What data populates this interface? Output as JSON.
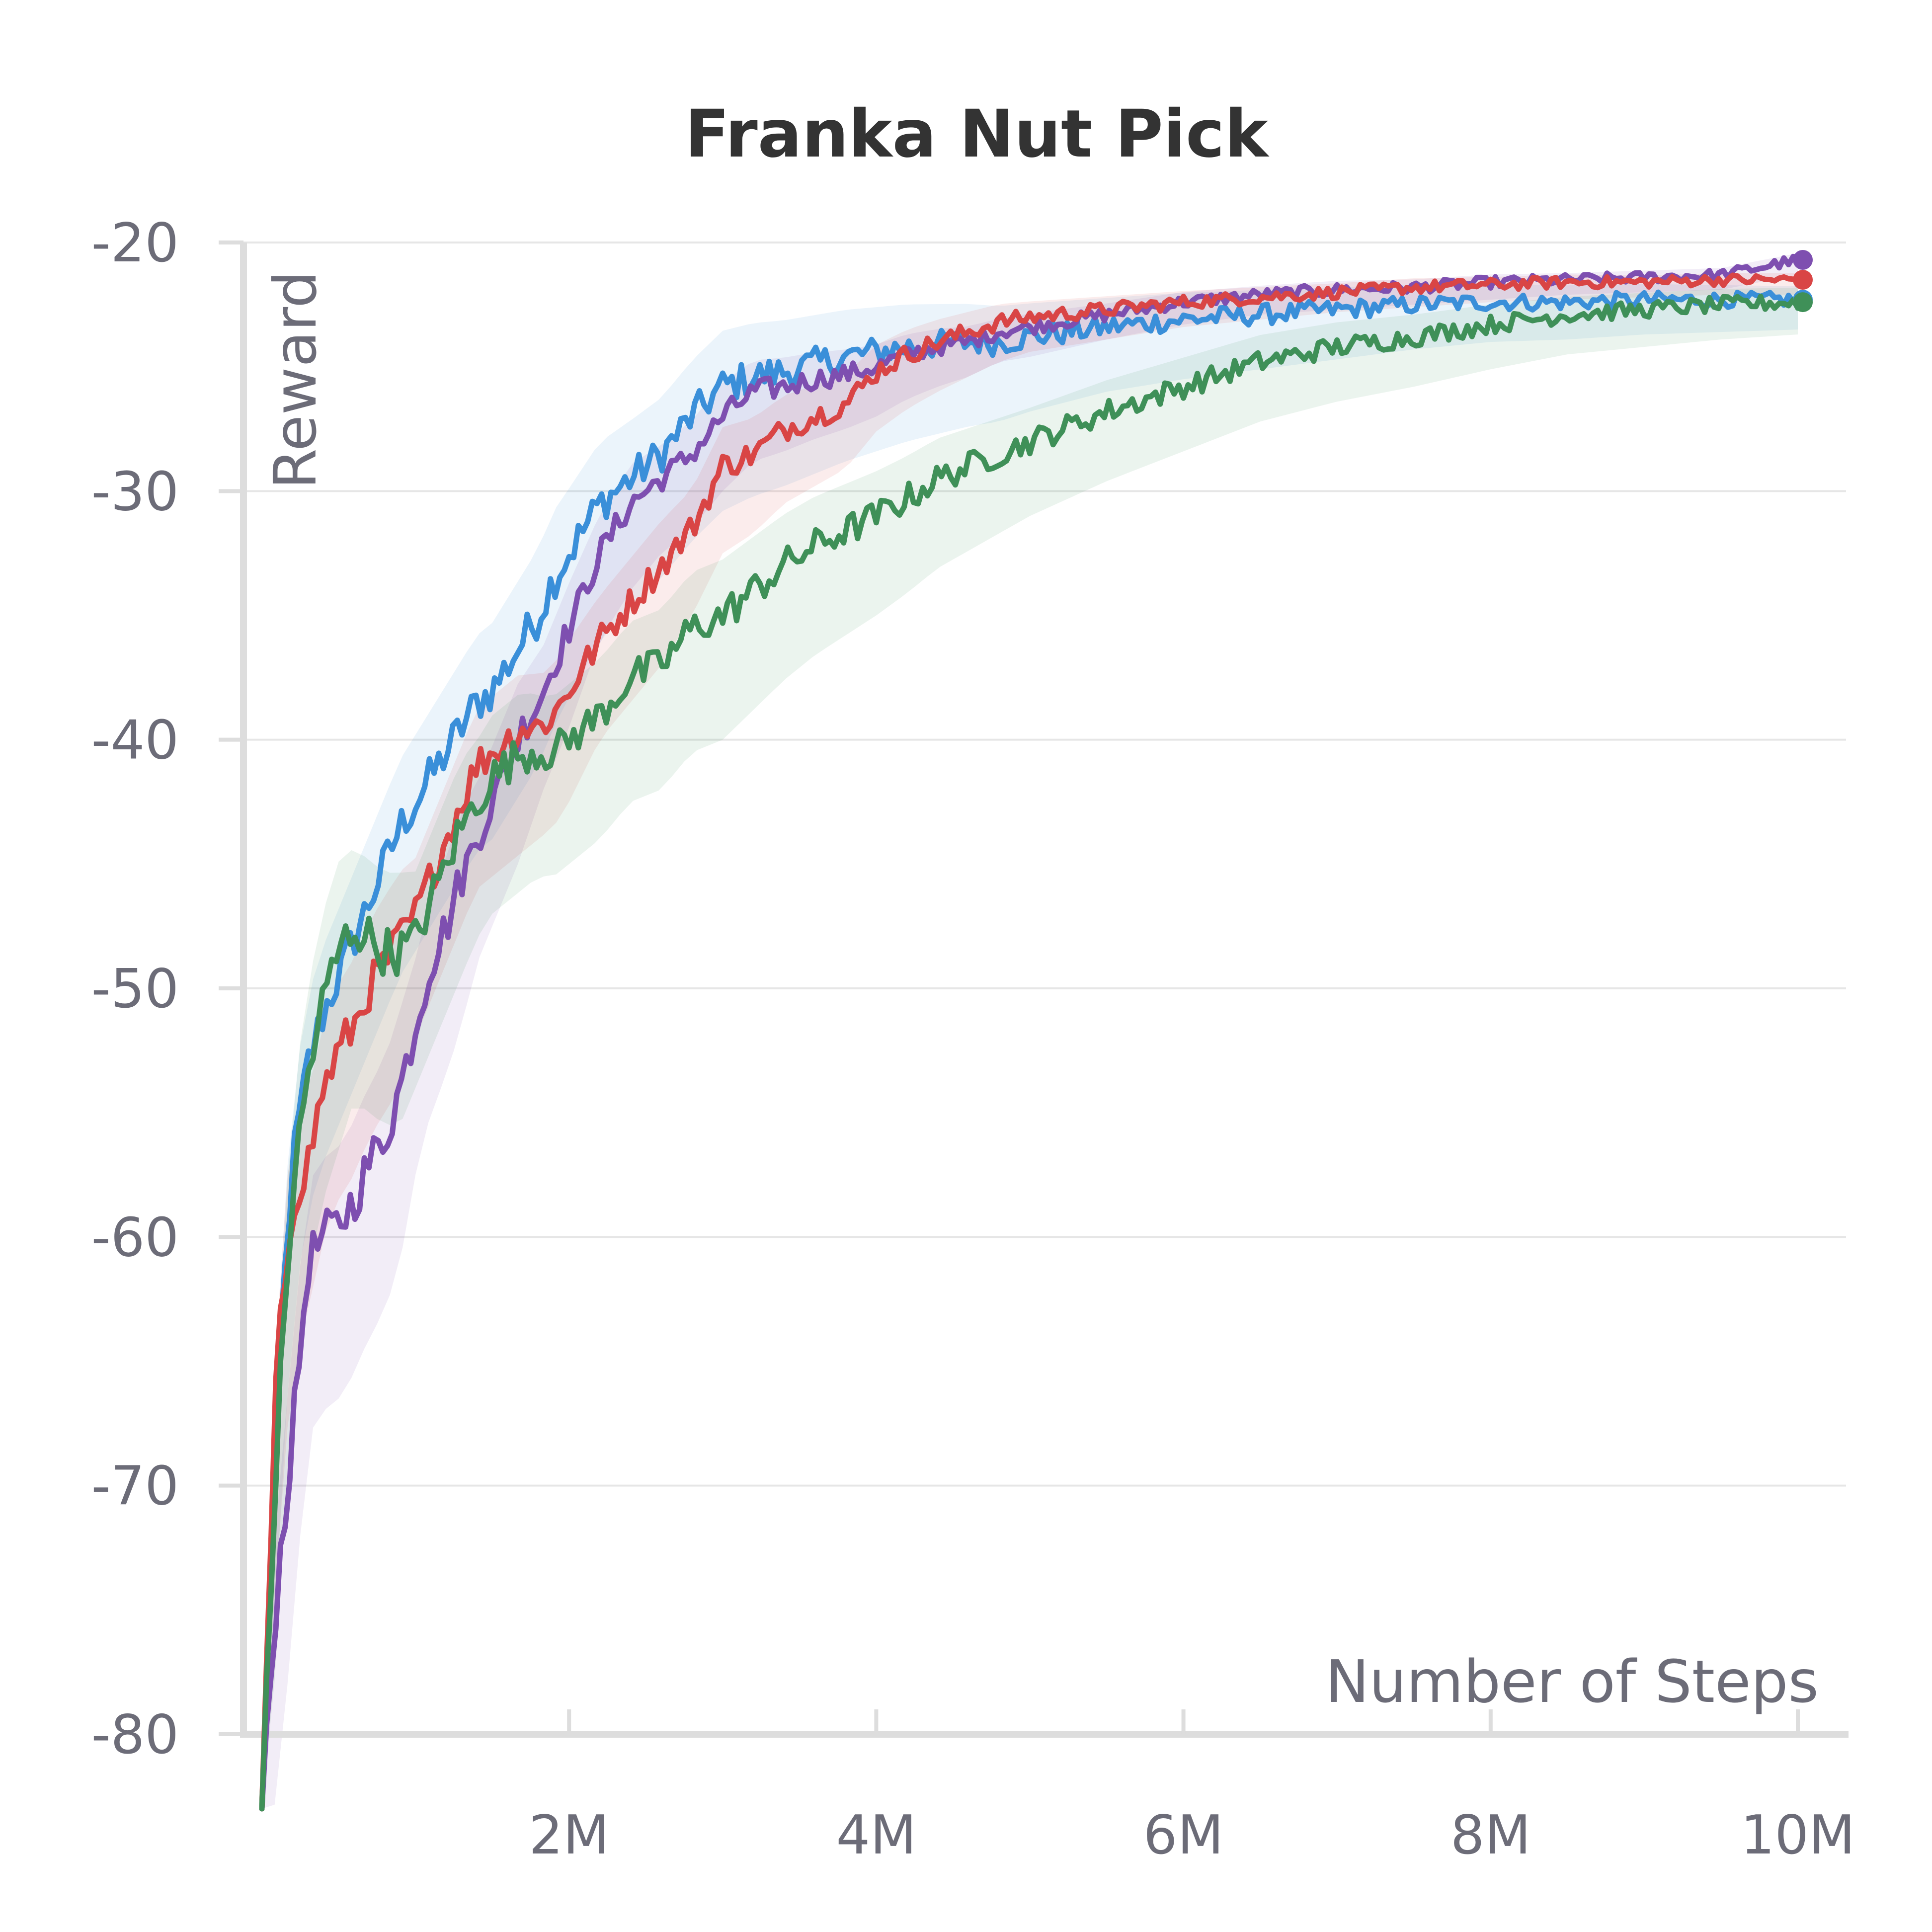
{
  "chart_data": {
    "type": "line",
    "title": "Franka Nut Pick",
    "xlabel": "Number of Steps",
    "ylabel": "Reward",
    "xlim": [
      0,
      10000000
    ],
    "ylim": [
      -80,
      -20
    ],
    "grid": true,
    "legend": "none",
    "x_ticks": [
      {
        "value": 2000000,
        "label": "2M"
      },
      {
        "value": 4000000,
        "label": "4M"
      },
      {
        "value": 6000000,
        "label": "6M"
      },
      {
        "value": 8000000,
        "label": "8M"
      },
      {
        "value": 10000000,
        "label": "10M"
      }
    ],
    "y_ticks": [
      {
        "value": -20,
        "label": "-20"
      },
      {
        "value": -30,
        "label": "-30"
      },
      {
        "value": -40,
        "label": "-40"
      },
      {
        "value": -50,
        "label": "-50"
      },
      {
        "value": -60,
        "label": "-60"
      },
      {
        "value": -70,
        "label": "-70"
      },
      {
        "value": -80,
        "label": "-80"
      }
    ],
    "x": [
      0,
      100000,
      200000,
      300000,
      400000,
      500000,
      600000,
      700000,
      800000,
      900000,
      1000000,
      1100000,
      1200000,
      1300000,
      1400000,
      1500000,
      1600000,
      1700000,
      1800000,
      1900000,
      2000000,
      2200000,
      2400000,
      2600000,
      2800000,
      3000000,
      3200000,
      3400000,
      3600000,
      3800000,
      4000000,
      4200000,
      4400000,
      4600000,
      4800000,
      5000000,
      5500000,
      6000000,
      6500000,
      7000000,
      7500000,
      8000000,
      8500000,
      9000000,
      9500000,
      10000000
    ],
    "series": [
      {
        "color": "#3a8fd9",
        "values": [
          -83,
          -66,
          -57,
          -53,
          -51,
          -49.5,
          -48,
          -46.5,
          -45,
          -43.5,
          -42.5,
          -41.5,
          -40.5,
          -39.5,
          -38.5,
          -38,
          -37,
          -36,
          -35,
          -33.5,
          -32.5,
          -30.5,
          -29.5,
          -28.5,
          -27,
          -25.8,
          -25.4,
          -25.2,
          -24.9,
          -24.6,
          -24.4,
          -24.2,
          -24.1,
          -24,
          -24,
          -23.8,
          -23.4,
          -23.1,
          -22.9,
          -22.7,
          -22.5,
          -22.4,
          -22.4,
          -22.3,
          -22.3,
          -22.3
        ],
        "band": [
          4,
          7,
          6,
          6,
          6,
          6,
          6,
          6,
          6,
          6,
          6,
          6,
          6,
          6,
          6,
          6,
          6,
          6,
          6,
          6,
          5.8,
          5.5,
          5.2,
          5,
          5,
          5,
          4.8,
          4.6,
          4.4,
          4.2,
          4,
          3.8,
          3.6,
          3.4,
          3.2,
          3,
          2.6,
          2.4,
          2.2,
          2,
          1.8,
          1.6,
          1.5,
          1.4,
          1.3,
          1.2
        ]
      },
      {
        "color": "#7e4fb0",
        "values": [
          -83,
          -74,
          -68,
          -61,
          -60,
          -59.5,
          -58.5,
          -57,
          -56,
          -54,
          -51.5,
          -49,
          -47.5,
          -45.5,
          -44,
          -42.5,
          -41,
          -39.5,
          -38.5,
          -37,
          -35.5,
          -32.5,
          -30.5,
          -29.5,
          -28.5,
          -27,
          -26,
          -25.8,
          -25.5,
          -25.3,
          -25,
          -24.5,
          -24.2,
          -24,
          -23.6,
          -23.4,
          -22.9,
          -22.4,
          -22.1,
          -21.9,
          -21.8,
          -21.6,
          -21.5,
          -21.4,
          -21.3,
          -20.7
        ],
        "band": [
          4,
          8,
          8,
          7,
          7,
          7,
          7,
          7,
          7,
          7,
          6,
          6,
          6,
          6,
          5,
          5,
          5,
          5,
          4,
          4,
          4,
          3.5,
          3.5,
          3,
          3,
          3,
          2.8,
          2.6,
          2.4,
          2.2,
          2,
          1.8,
          1.6,
          1.4,
          1.2,
          1.2,
          1,
          0.9,
          0.8,
          0.8,
          0.7,
          0.7,
          0.6,
          0.6,
          0.6,
          0.6
        ]
      },
      {
        "color": "#d94545",
        "values": [
          -83,
          -65,
          -58.5,
          -57,
          -54,
          -52.5,
          -51.5,
          -50,
          -49,
          -48,
          -47,
          -45.5,
          -44,
          -42.5,
          -41,
          -40.5,
          -40,
          -39.5,
          -39.5,
          -39,
          -38,
          -36,
          -34.5,
          -33,
          -31.5,
          -29,
          -28.5,
          -27.5,
          -27,
          -26.5,
          -25.2,
          -24.5,
          -24,
          -23.6,
          -23.2,
          -23,
          -22.7,
          -22.4,
          -22.2,
          -22,
          -21.8,
          -21.7,
          -21.6,
          -21.6,
          -21.5,
          -21.5
        ],
        "band": [
          4,
          7,
          7,
          6,
          6,
          6,
          6,
          6,
          6,
          6,
          5,
          5,
          5,
          5,
          5,
          5,
          5,
          5,
          4.5,
          4.5,
          4.5,
          4,
          4,
          4,
          3.5,
          3.5,
          3.2,
          3,
          2.8,
          2.6,
          2.4,
          2.2,
          2,
          1.8,
          1.6,
          1.4,
          1.2,
          1,
          0.9,
          0.8,
          0.8,
          0.7,
          0.7,
          0.6,
          0.6,
          0.6
        ]
      },
      {
        "color": "#3f9058",
        "values": [
          -83,
          -68,
          -58,
          -53.5,
          -50.5,
          -48.5,
          -47.5,
          -48,
          -48.5,
          -48.5,
          -48,
          -46.5,
          -45,
          -43.5,
          -42.5,
          -41.5,
          -41,
          -40.5,
          -40.5,
          -40.5,
          -40,
          -39,
          -37.5,
          -37,
          -35.5,
          -35,
          -34,
          -33,
          -32.2,
          -31.6,
          -31,
          -30.3,
          -29.5,
          -29,
          -28.5,
          -28,
          -26.8,
          -25.8,
          -24.8,
          -24.2,
          -23.8,
          -23.3,
          -22.9,
          -22.7,
          -22.5,
          -22.4
        ],
        "band": [
          4,
          8,
          8,
          8,
          8,
          8,
          7,
          7,
          7,
          7,
          6,
          6,
          6,
          6,
          5.5,
          5.5,
          5.5,
          5.5,
          5,
          5,
          5,
          5,
          5,
          5,
          5,
          5,
          4.8,
          4.6,
          4.4,
          4.2,
          4,
          3.8,
          3.6,
          3.4,
          3.2,
          3,
          2.8,
          2.6,
          2.4,
          2.2,
          2,
          1.8,
          1.6,
          1.5,
          1.4,
          1.3
        ]
      }
    ]
  }
}
